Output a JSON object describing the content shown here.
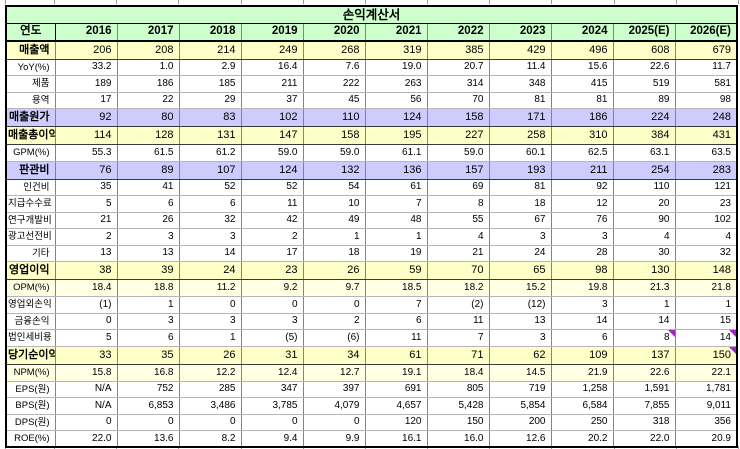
{
  "title": "손익계산서",
  "colors": {
    "header_green": "#ccffcc",
    "highlight_yellow": "#ffffc8",
    "highlight_pale_yellow": "#ffffe3",
    "highlight_lavender": "#ccccff",
    "comment_marker_purple": "#a820c8",
    "border_black": "#000000"
  },
  "table": {
    "corner_label": "연도",
    "years": [
      "2016",
      "2017",
      "2018",
      "2019",
      "2020",
      "2021",
      "2022",
      "2023",
      "2024",
      "2025(E)",
      "2026(E)"
    ],
    "rows": [
      {
        "label": "매출액",
        "fill": "yellow",
        "size": "main",
        "values": [
          "206",
          "208",
          "214",
          "249",
          "268",
          "319",
          "385",
          "429",
          "496",
          "608",
          "679"
        ]
      },
      {
        "label": "YoY(%)",
        "fill": "white",
        "size": "sub",
        "values": [
          "33.2",
          "1.0",
          "2.9",
          "16.4",
          "7.6",
          "19.0",
          "20.7",
          "11.4",
          "15.6",
          "22.6",
          "11.7"
        ]
      },
      {
        "label": "제품",
        "fill": "white",
        "size": "sub",
        "values": [
          "189",
          "186",
          "185",
          "211",
          "222",
          "263",
          "314",
          "348",
          "415",
          "519",
          "581"
        ]
      },
      {
        "label": "용역",
        "fill": "white",
        "size": "sub",
        "values": [
          "17",
          "22",
          "29",
          "37",
          "45",
          "56",
          "70",
          "81",
          "81",
          "89",
          "98"
        ]
      },
      {
        "label": "매출원가",
        "fill": "lavender",
        "size": "main",
        "values": [
          "92",
          "80",
          "83",
          "102",
          "110",
          "124",
          "158",
          "171",
          "186",
          "224",
          "248"
        ]
      },
      {
        "label": "매출총이익",
        "fill": "yellow",
        "size": "main",
        "values": [
          "114",
          "128",
          "131",
          "147",
          "158",
          "195",
          "227",
          "258",
          "310",
          "384",
          "431"
        ]
      },
      {
        "label": "GPM(%)",
        "fill": "white",
        "size": "sub",
        "values": [
          "55.3",
          "61.5",
          "61.2",
          "59.0",
          "59.0",
          "61.1",
          "59.0",
          "60.1",
          "62.5",
          "63.1",
          "63.5"
        ]
      },
      {
        "label": "판관비",
        "fill": "lavender",
        "size": "main",
        "values": [
          "76",
          "89",
          "107",
          "124",
          "132",
          "136",
          "157",
          "193",
          "211",
          "254",
          "283"
        ]
      },
      {
        "label": "인건비",
        "fill": "white",
        "size": "sub",
        "values": [
          "35",
          "41",
          "52",
          "52",
          "54",
          "61",
          "69",
          "81",
          "92",
          "110",
          "121"
        ]
      },
      {
        "label": "지급수수료",
        "fill": "white",
        "size": "sub",
        "values": [
          "5",
          "6",
          "6",
          "11",
          "10",
          "7",
          "8",
          "18",
          "12",
          "20",
          "23"
        ]
      },
      {
        "label": "연구개발비",
        "fill": "white",
        "size": "sub",
        "values": [
          "21",
          "26",
          "32",
          "42",
          "49",
          "48",
          "55",
          "67",
          "76",
          "90",
          "102"
        ]
      },
      {
        "label": "광고선전비",
        "fill": "white",
        "size": "sub",
        "values": [
          "2",
          "3",
          "3",
          "2",
          "1",
          "1",
          "4",
          "3",
          "3",
          "4",
          "4"
        ]
      },
      {
        "label": "기타",
        "fill": "white",
        "size": "sub",
        "values": [
          "13",
          "13",
          "14",
          "17",
          "18",
          "19",
          "21",
          "24",
          "28",
          "30",
          "32"
        ]
      },
      {
        "label": "영업이익",
        "fill": "yellow",
        "size": "main",
        "values": [
          "38",
          "39",
          "24",
          "23",
          "26",
          "59",
          "70",
          "65",
          "98",
          "130",
          "148"
        ]
      },
      {
        "label": "OPM(%)",
        "fill": "pale",
        "size": "sub",
        "values": [
          "18.4",
          "18.8",
          "11.2",
          "9.2",
          "9.7",
          "18.5",
          "18.2",
          "15.2",
          "19.8",
          "21.3",
          "21.8"
        ]
      },
      {
        "label": "영업외손익",
        "fill": "white",
        "size": "sub",
        "values": [
          "(1)",
          "1",
          "0",
          "0",
          "0",
          "7",
          "(2)",
          "(12)",
          "3",
          "1",
          "1"
        ]
      },
      {
        "label": "금융손익",
        "fill": "white",
        "size": "sub",
        "values": [
          "0",
          "3",
          "3",
          "3",
          "2",
          "6",
          "11",
          "13",
          "14",
          "14",
          "15"
        ]
      },
      {
        "label": "법인세비용",
        "fill": "white",
        "size": "sub",
        "values": [
          "5",
          "6",
          "1",
          "(5)",
          "(6)",
          "11",
          "7",
          "3",
          "6",
          "8",
          "14"
        ]
      },
      {
        "label": "당기순이익",
        "fill": "yellow",
        "size": "main",
        "values": [
          "33",
          "35",
          "26",
          "31",
          "34",
          "61",
          "71",
          "62",
          "109",
          "137",
          "150"
        ]
      },
      {
        "label": "NPM(%)",
        "fill": "pale",
        "size": "sub",
        "values": [
          "15.8",
          "16.8",
          "12.2",
          "12.4",
          "12.7",
          "19.1",
          "18.4",
          "14.5",
          "21.9",
          "22.6",
          "22.1"
        ]
      },
      {
        "label": "EPS(원)",
        "fill": "white",
        "size": "sub",
        "values": [
          "N/A",
          "752",
          "285",
          "347",
          "397",
          "691",
          "805",
          "719",
          "1,258",
          "1,591",
          "1,781"
        ]
      },
      {
        "label": "BPS(원)",
        "fill": "white",
        "size": "sub",
        "values": [
          "N/A",
          "6,853",
          "3,486",
          "3,785",
          "4,079",
          "4,657",
          "5,428",
          "5,854",
          "6,584",
          "7,855",
          "9,011"
        ]
      },
      {
        "label": "DPS(원)",
        "fill": "white",
        "size": "sub",
        "values": [
          "0",
          "0",
          "0",
          "0",
          "0",
          "120",
          "150",
          "200",
          "250",
          "318",
          "356"
        ]
      },
      {
        "label": "ROE(%)",
        "fill": "white",
        "size": "sub",
        "values": [
          "22.0",
          "13.6",
          "8.2",
          "9.4",
          "9.9",
          "16.1",
          "16.0",
          "12.6",
          "20.2",
          "22.0",
          "20.9"
        ]
      }
    ],
    "comment_markers": [
      {
        "row": 17,
        "col": 9
      },
      {
        "row": 17,
        "col": 10
      },
      {
        "row": 18,
        "col": 10
      }
    ]
  }
}
